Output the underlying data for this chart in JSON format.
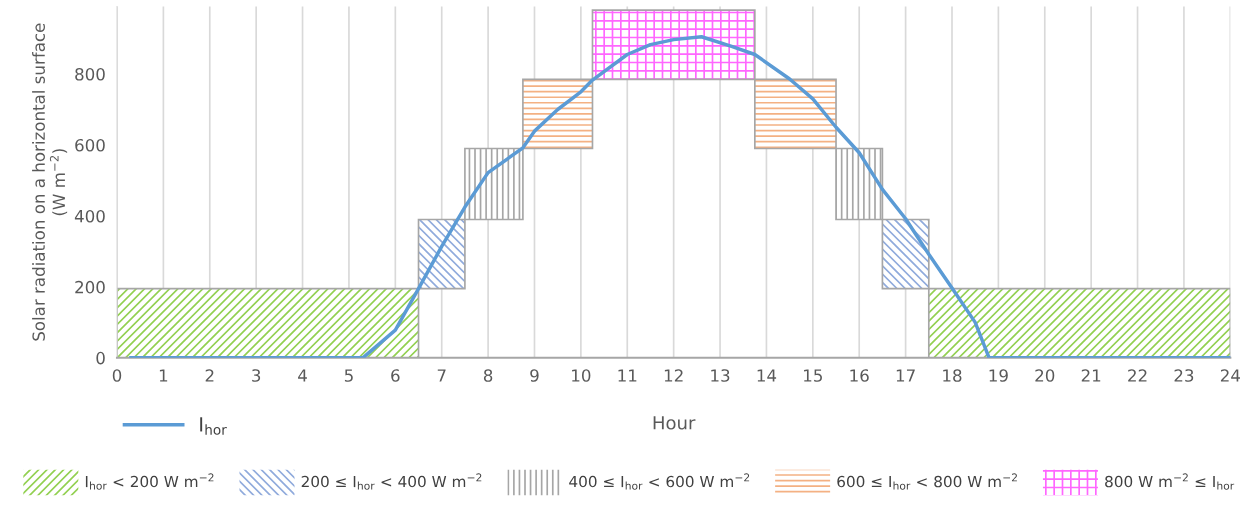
{
  "chart_data": {
    "type": "line",
    "xlabel": "Hour",
    "ylabel": "Solar radiation on a horizontal surface\n(W m$^{−2}$)",
    "xlim": [
      0,
      24
    ],
    "xticks": [
      0,
      1,
      2,
      3,
      4,
      5,
      6,
      7,
      8,
      9,
      10,
      11,
      12,
      13,
      14,
      15,
      16,
      17,
      18,
      19,
      20,
      21,
      22,
      23,
      24
    ],
    "ylim": [
      0,
      990
    ],
    "yticks": [
      0,
      200,
      400,
      600,
      800
    ],
    "grid": "x",
    "legend": "bottom",
    "marker": "none",
    "line_style": "solid",
    "series": [
      {
        "type": "area",
        "name": "I$_{hor}$ < 200 W m$^{−2}$",
        "color": "#92d050",
        "x": [
          0,
          0,
          6.5,
          6.5
        ],
        "values": [
          0,
          195,
          195,
          0
        ]
      },
      {
        "type": "area",
        "color": "#92d050",
        "x": [
          17.5,
          17.5,
          24,
          24
        ],
        "values": [
          0,
          195,
          195,
          0
        ]
      },
      {
        "type": "area",
        "name": "200 ≤ I$_{hor}$ < 400 W m$^{−2}$",
        "color": "#8faadc",
        "x": [
          6.5,
          6.5,
          7.5,
          7.5
        ],
        "values": [
          195,
          390,
          390,
          195
        ]
      },
      {
        "type": "area",
        "color": "#8faadc",
        "x": [
          16.5,
          16.5,
          17.5,
          17.5
        ],
        "values": [
          195,
          390,
          390,
          195
        ]
      },
      {
        "type": "area",
        "name": "400 ≤ I$_{hor}$ < 600 W m$^{−2}$",
        "color": "#a6a6a6",
        "x": [
          7.5,
          7.5,
          8.75,
          8.75
        ],
        "values": [
          390,
          590,
          590,
          390
        ]
      },
      {
        "type": "area",
        "color": "#a6a6a6",
        "x": [
          15.5,
          15.5,
          16.5,
          16.5
        ],
        "values": [
          390,
          590,
          590,
          390
        ]
      },
      {
        "type": "area",
        "name": "600 ≤ I$_{hor}$ < 800 W m$^{−2}$",
        "color": "#f4b183",
        "x": [
          8.75,
          8.75,
          10.25,
          10.25
        ],
        "values": [
          590,
          785,
          785,
          590
        ]
      },
      {
        "type": "area",
        "color": "#f4b183",
        "x": [
          13.75,
          13.75,
          15.5,
          15.5
        ],
        "values": [
          590,
          785,
          785,
          590
        ]
      },
      {
        "type": "area",
        "name": "800 W m$^{−2}$ ≤ I$_{hor}$",
        "color": "#ff66ff",
        "x": [
          10.25,
          10.25,
          13.75,
          13.75
        ],
        "values": [
          785,
          980,
          980,
          785
        ]
      },
      {
        "name": "I$_{hor}$",
        "color": "#5b9bd5",
        "x": [
          0.3,
          5.3,
          6,
          6.5,
          7,
          7.5,
          8,
          8.75,
          9,
          9.5,
          10,
          10.25,
          11,
          11.5,
          12,
          12.6,
          13.25,
          13.75,
          14.5,
          15,
          15.5,
          16,
          16.5,
          17,
          17.5,
          18,
          18.5,
          18.8,
          24
        ],
        "values": [
          0,
          0,
          78,
          195,
          314,
          425,
          522,
          592,
          639,
          700,
          750,
          783,
          855,
          883,
          897,
          905,
          878,
          855,
          786,
          730,
          650,
          578,
          475,
          392,
          292,
          197,
          100,
          0,
          0
        ]
      }
    ]
  }
}
